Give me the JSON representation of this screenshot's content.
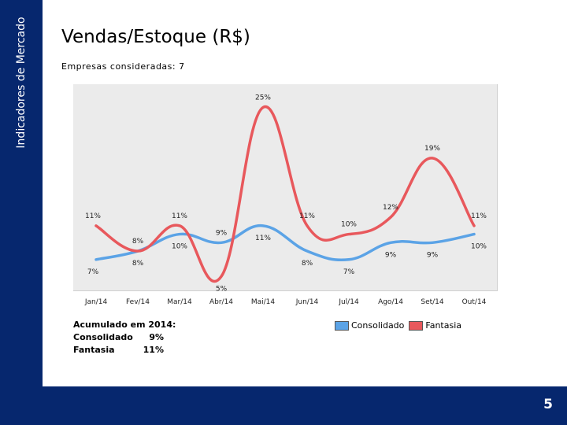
{
  "sidebar": {
    "label": "Indicadores de Mercado"
  },
  "header": {
    "title": "Vendas/Estoque (R$)",
    "subtitle": "Empresas consideradas: 7"
  },
  "summary": {
    "heading": "Acumulado em 2014:",
    "rows": [
      {
        "label": "Consolidado",
        "value": "9%"
      },
      {
        "label": "Fantasia",
        "value": "11%"
      }
    ]
  },
  "legend": [
    {
      "label": "Consolidado",
      "color": "#5ba3e6"
    },
    {
      "label": "Fantasia",
      "color": "#e8585c"
    }
  ],
  "footer": {
    "page_number": "5"
  },
  "chart_data": {
    "type": "line",
    "categories": [
      "Jan/14",
      "Fev/14",
      "Mar/14",
      "Abr/14",
      "Mai/14",
      "Jun/14",
      "Jul/14",
      "Ago/14",
      "Set/14",
      "Out/14"
    ],
    "ylim": [
      4,
      27
    ],
    "grid": false,
    "legend_position": "bottom-right",
    "series": [
      {
        "name": "Consolidado",
        "color": "#5ba3e6",
        "values": [
          7,
          8,
          10,
          9,
          11,
          8,
          7,
          9,
          9,
          10
        ],
        "labels": [
          "7%",
          "8%",
          "10%",
          "9%",
          "11%",
          "8%",
          "7%",
          "9%",
          "9%",
          "10%"
        ]
      },
      {
        "name": "Fantasia",
        "color": "#e8585c",
        "values": [
          11,
          8,
          11,
          5,
          25,
          11,
          10,
          12,
          19,
          11
        ],
        "labels": [
          "11%",
          "8%",
          "11%",
          "5%",
          "25%",
          "11%",
          "10%",
          "12%",
          "19%",
          "11%"
        ]
      }
    ]
  }
}
